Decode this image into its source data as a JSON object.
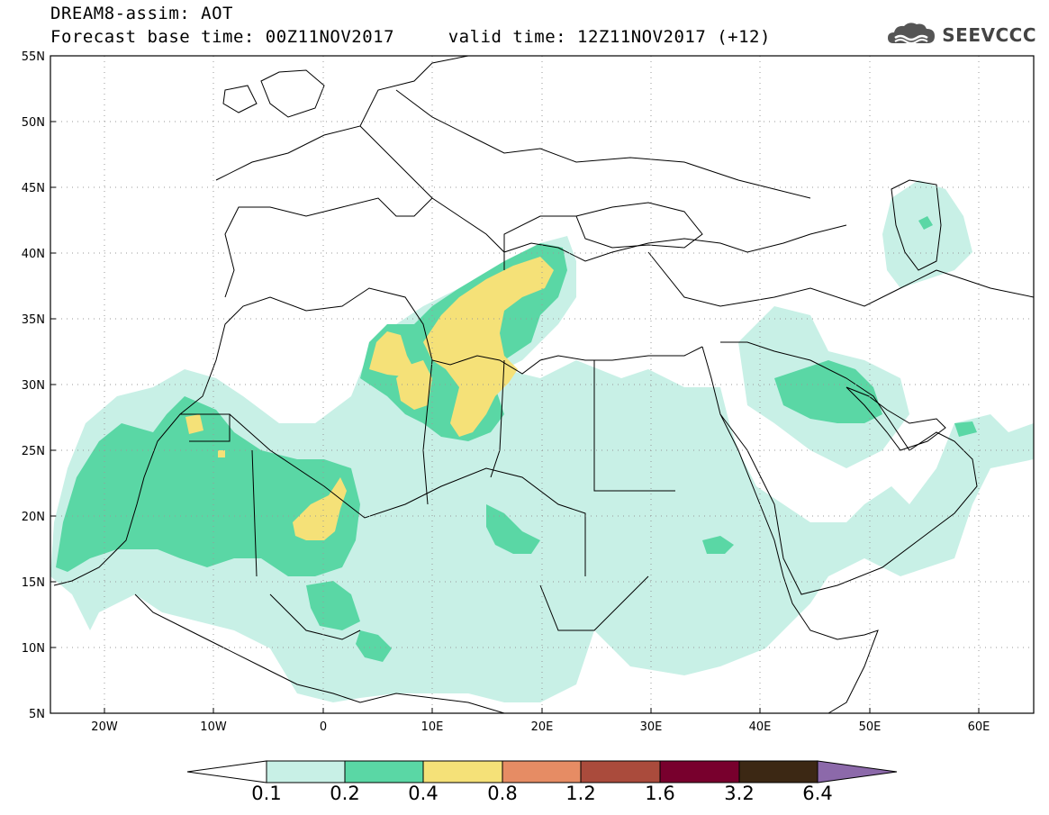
{
  "title": {
    "line1": "DREAM8-assim: AOT",
    "line2": "Forecast base time: 00Z11NOV2017     valid time: 12Z11NOV2017 (+12)"
  },
  "logo": {
    "text": "SEEVCCC",
    "icon": "cloud-icon"
  },
  "map": {
    "lat_labels": [
      "55N",
      "50N",
      "45N",
      "40N",
      "35N",
      "30N",
      "25N",
      "20N",
      "15N",
      "10N",
      "5N"
    ],
    "lon_labels": [
      "20W",
      "10W",
      "0",
      "10E",
      "20E",
      "30E",
      "40E",
      "50E",
      "60E"
    ],
    "lat_range": [
      5,
      55
    ],
    "lon_range": [
      -25,
      65
    ],
    "variable": "AOT"
  },
  "legend": {
    "levels": [
      "0.1",
      "0.2",
      "0.4",
      "0.8",
      "1.2",
      "1.6",
      "3.2",
      "6.4"
    ],
    "colors": [
      "#ffffff",
      "#c8f0e6",
      "#5ad7a5",
      "#f5e178",
      "#e68c64",
      "#aa4b3c",
      "#78002d",
      "#3c2814",
      "#8c69aa"
    ]
  }
}
